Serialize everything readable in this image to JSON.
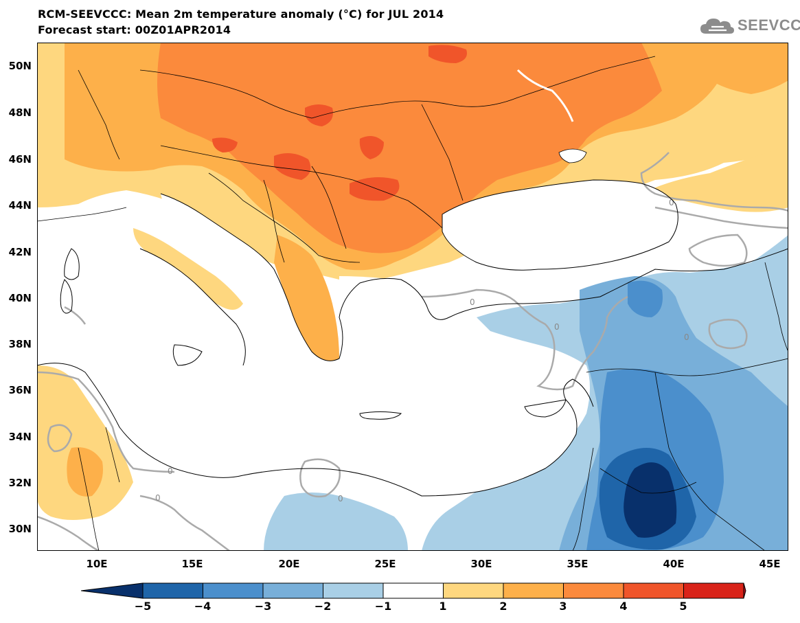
{
  "header": {
    "title_line1": "RCM-SEEVCCC: Mean 2m temperature anomaly (°C) for JUL 2014",
    "title_line2": "Forecast start: 00Z01APR2014",
    "logo_text": "SEEVCCC",
    "logo_icon": "cloud-icon"
  },
  "map": {
    "lat_labels": [
      "50N",
      "48N",
      "46N",
      "44N",
      "42N",
      "40N",
      "38N",
      "36N",
      "34N",
      "32N",
      "30N"
    ],
    "lon_labels": [
      "10E",
      "15E",
      "20E",
      "25E",
      "30E",
      "35E",
      "40E",
      "45E"
    ],
    "contour_label": "0"
  },
  "colorbar": {
    "ticks": [
      "−5",
      "−4",
      "−3",
      "−2",
      "−1",
      "1",
      "2",
      "3",
      "4",
      "5"
    ],
    "colors": [
      "#08306b",
      "#1f65a9",
      "#4b8fcc",
      "#78afd9",
      "#a9cfe6",
      "#ffffff",
      "#fed77f",
      "#fdb04a",
      "#fb8a3c",
      "#f0552a",
      "#d92319",
      "#b50f1e"
    ]
  }
}
